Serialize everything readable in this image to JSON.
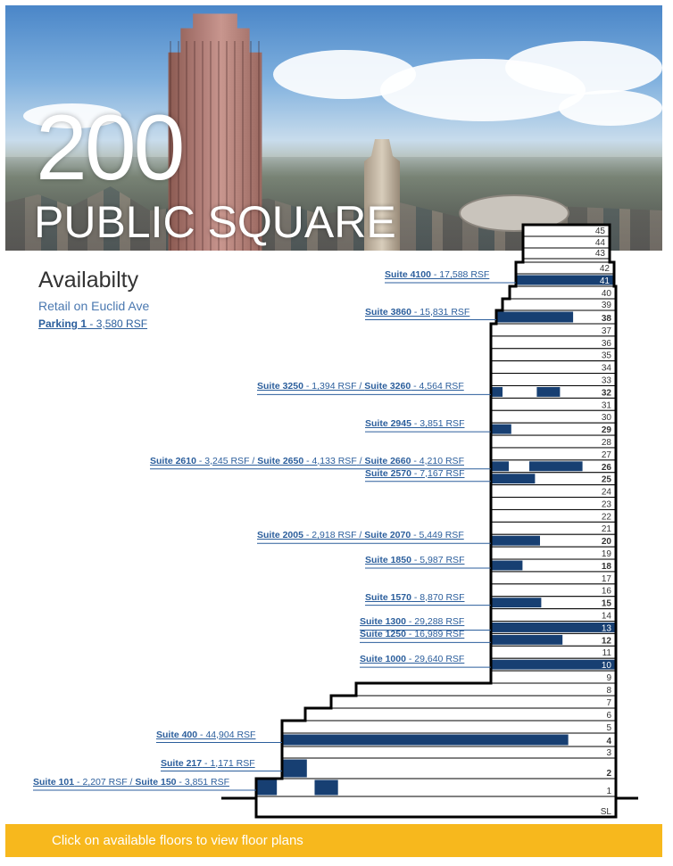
{
  "hero": {
    "number": "200",
    "name": "PUBLIC SQUARE"
  },
  "availability": {
    "title": "Availabilty",
    "retail": "Retail on Euclid Ave",
    "parking_name": "Parking 1",
    "parking_detail": " - 3,580 RSF"
  },
  "floors": [
    {
      "label": "45",
      "bold": false,
      "fills": []
    },
    {
      "label": "44",
      "bold": false,
      "fills": []
    },
    {
      "label": "43",
      "bold": false,
      "fills": []
    },
    {
      "label": "42",
      "bold": false,
      "fills": []
    },
    {
      "label": "41",
      "bold": false,
      "fills": [
        [
          0,
          1
        ]
      ]
    },
    {
      "label": "40",
      "bold": false,
      "fills": []
    },
    {
      "label": "39",
      "bold": false,
      "fills": []
    },
    {
      "label": "38",
      "bold": true,
      "fills": [
        [
          0,
          0.65
        ]
      ]
    },
    {
      "label": "37",
      "bold": false,
      "fills": []
    },
    {
      "label": "36",
      "bold": false,
      "fills": []
    },
    {
      "label": "35",
      "bold": false,
      "fills": []
    },
    {
      "label": "34",
      "bold": false,
      "fills": []
    },
    {
      "label": "33",
      "bold": false,
      "fills": []
    },
    {
      "label": "32",
      "bold": true,
      "fills": [
        [
          0,
          0.1
        ],
        [
          0.36,
          0.56
        ]
      ]
    },
    {
      "label": "31",
      "bold": false,
      "fills": []
    },
    {
      "label": "30",
      "bold": false,
      "fills": []
    },
    {
      "label": "29",
      "bold": true,
      "fills": [
        [
          0,
          0.17
        ]
      ]
    },
    {
      "label": "28",
      "bold": false,
      "fills": []
    },
    {
      "label": "27",
      "bold": false,
      "fills": []
    },
    {
      "label": "26",
      "bold": true,
      "fills": [
        [
          0,
          0.15
        ],
        [
          0.3,
          0.74
        ]
      ]
    },
    {
      "label": "25",
      "bold": true,
      "fills": [
        [
          0,
          0.36
        ]
      ]
    },
    {
      "label": "24",
      "bold": false,
      "fills": []
    },
    {
      "label": "23",
      "bold": false,
      "fills": []
    },
    {
      "label": "22",
      "bold": false,
      "fills": []
    },
    {
      "label": "21",
      "bold": false,
      "fills": []
    },
    {
      "label": "20",
      "bold": true,
      "fills": [
        [
          0,
          0.4
        ]
      ]
    },
    {
      "label": "19",
      "bold": false,
      "fills": []
    },
    {
      "label": "18",
      "bold": true,
      "fills": [
        [
          0,
          0.26
        ]
      ]
    },
    {
      "label": "17",
      "bold": false,
      "fills": []
    },
    {
      "label": "16",
      "bold": false,
      "fills": []
    },
    {
      "label": "15",
      "bold": true,
      "fills": [
        [
          0,
          0.41
        ]
      ]
    },
    {
      "label": "14",
      "bold": false,
      "fills": []
    },
    {
      "label": "13",
      "bold": false,
      "fills": [
        [
          0,
          1
        ]
      ]
    },
    {
      "label": "12",
      "bold": true,
      "fills": [
        [
          0,
          0.58
        ]
      ]
    },
    {
      "label": "11",
      "bold": false,
      "fills": []
    },
    {
      "label": "10",
      "bold": false,
      "fills": [
        [
          0,
          1
        ]
      ]
    },
    {
      "label": "9",
      "bold": false,
      "fills": []
    },
    {
      "label": "8",
      "bold": false,
      "fills": []
    },
    {
      "label": "7",
      "bold": false,
      "fills": []
    },
    {
      "label": "6",
      "bold": false,
      "fills": []
    },
    {
      "label": "5",
      "bold": false,
      "fills": []
    },
    {
      "label": "4",
      "bold": true,
      "fills": [
        [
          0,
          0.86
        ]
      ]
    },
    {
      "label": "3",
      "bold": false,
      "fills": []
    },
    {
      "label": "2",
      "bold": true,
      "fills": [
        [
          0,
          0.077
        ]
      ]
    },
    {
      "label": "1",
      "bold": false,
      "fills": [
        [
          0,
          0.06
        ],
        [
          0.16,
          0.23
        ]
      ]
    },
    {
      "label": "SL",
      "bold": false,
      "fills": []
    }
  ],
  "suites": [
    {
      "floor": "41",
      "parts": [
        {
          "name": "Suite 4100",
          "rsf": " - 17,588 RSF"
        }
      ]
    },
    {
      "floor": "38",
      "parts": [
        {
          "name": "Suite 3860",
          "rsf": " - 15,831 RSF"
        }
      ]
    },
    {
      "floor": "32",
      "parts": [
        {
          "name": "Suite 3250",
          "rsf": " - 1,394 RSF"
        },
        {
          "name": "Suite 3260",
          "rsf": " - 4,564 RSF"
        }
      ]
    },
    {
      "floor": "29",
      "parts": [
        {
          "name": "Suite 2945",
          "rsf": " - 3,851 RSF"
        }
      ]
    },
    {
      "floor": "26",
      "parts": [
        {
          "name": "Suite 2610",
          "rsf": " - 3,245 RSF"
        },
        {
          "name": "Suite 2650",
          "rsf": " - 4,133 RSF"
        },
        {
          "name": "Suite 2660",
          "rsf": " - 4,210 RSF"
        }
      ]
    },
    {
      "floor": "25",
      "parts": [
        {
          "name": "Suite 2570",
          "rsf": " - 7,167 RSF"
        }
      ]
    },
    {
      "floor": "20",
      "parts": [
        {
          "name": "Suite 2005",
          "rsf": " - 2,918 RSF"
        },
        {
          "name": "Suite 2070",
          "rsf": " - 5,449 RSF"
        }
      ]
    },
    {
      "floor": "18",
      "parts": [
        {
          "name": "Suite 1850",
          "rsf": " - 5,987 RSF"
        }
      ]
    },
    {
      "floor": "15",
      "parts": [
        {
          "name": "Suite 1570",
          "rsf": " - 8,870 RSF"
        }
      ]
    },
    {
      "floor": "13",
      "parts": [
        {
          "name": "Suite 1300",
          "rsf": " - 29,288 RSF"
        }
      ]
    },
    {
      "floor": "12",
      "parts": [
        {
          "name": "Suite 1250",
          "rsf": " - 16,989 RSF"
        }
      ]
    },
    {
      "floor": "10",
      "parts": [
        {
          "name": "Suite 1000",
          "rsf": " - 29,640 RSF"
        }
      ]
    },
    {
      "floor": "4",
      "parts": [
        {
          "name": "Suite 400",
          "rsf": " - 44,904 RSF"
        }
      ]
    },
    {
      "floor": "2",
      "parts": [
        {
          "name": "Suite 217",
          "rsf": " - 1,171 RSF"
        }
      ]
    },
    {
      "floor": "1",
      "parts": [
        {
          "name": "Suite 101",
          "rsf": " - 2,207 RSF"
        },
        {
          "name": "Suite 150",
          "rsf": " - 3,851 RSF"
        }
      ]
    }
  ],
  "colors": {
    "available": "#173f72",
    "outline": "#000000",
    "link": "#2b5e9c",
    "banner": "#f7b81d"
  },
  "footer": {
    "text": "Click on available floors to view floor plans"
  }
}
